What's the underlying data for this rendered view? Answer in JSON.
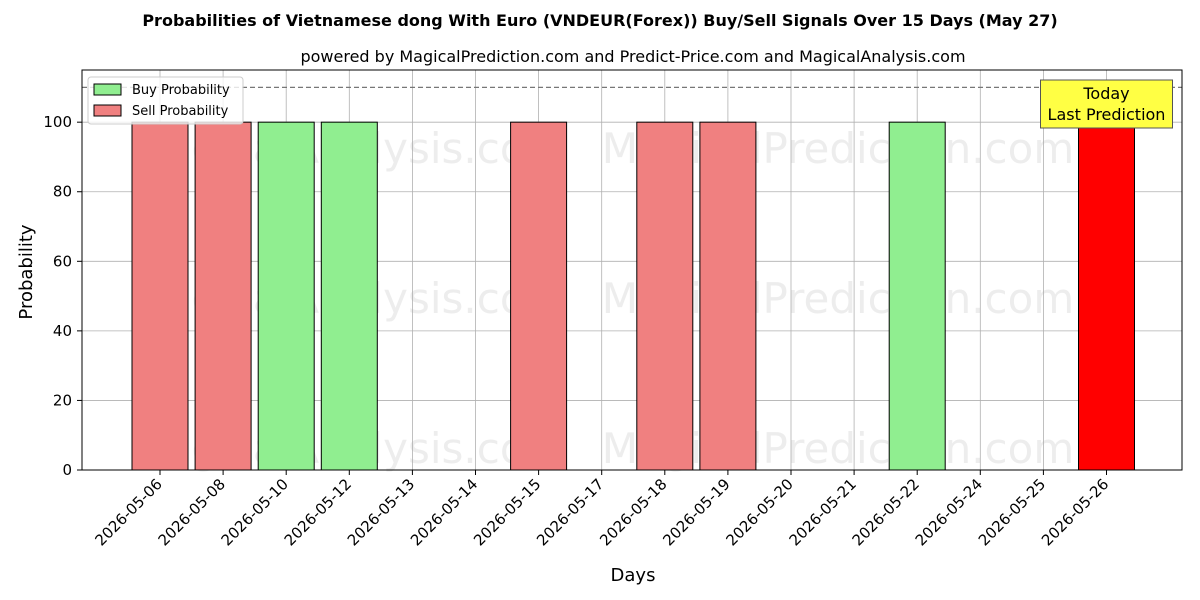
{
  "chart_data": {
    "type": "bar",
    "title": "Probabilities of Vietnamese dong With Euro (VNDEUR(Forex)) Buy/Sell Signals Over 15 Days (May 27)",
    "subtitle": "powered by MagicalPrediction.com and Predict-Price.com and MagicalAnalysis.com",
    "xlabel": "Days",
    "ylabel": "Probability",
    "ylim": [
      0,
      115
    ],
    "yticks": [
      0,
      20,
      40,
      60,
      80,
      100
    ],
    "grid": true,
    "legend_position": "top-left",
    "reference_line": 110,
    "categories": [
      "2026-05-06",
      "2026-05-08",
      "2026-05-10",
      "2026-05-12",
      "2026-05-13",
      "2026-05-14",
      "2026-05-15",
      "2026-05-17",
      "2026-05-18",
      "2026-05-19",
      "2026-05-20",
      "2026-05-21",
      "2026-05-22",
      "2026-05-24",
      "2026-05-25",
      "2026-05-26"
    ],
    "series": [
      {
        "name": "Buy Probability",
        "color": "#90ee90",
        "values": [
          0,
          0,
          100,
          100,
          0,
          0,
          0,
          0,
          0,
          0,
          0,
          0,
          100,
          0,
          0,
          0
        ]
      },
      {
        "name": "Sell Probability",
        "color": "#f08080",
        "values": [
          100,
          100,
          0,
          0,
          0,
          0,
          100,
          0,
          100,
          100,
          0,
          0,
          0,
          0,
          0,
          100
        ]
      }
    ],
    "highlight": {
      "index": 15,
      "color": "#ff0000",
      "label_line1": "Today",
      "label_line2": "Last Prediction",
      "box_color": "#ffff44"
    },
    "watermarks": [
      "MagicalAnalysis.com",
      "MagicalPrediction.com"
    ]
  }
}
